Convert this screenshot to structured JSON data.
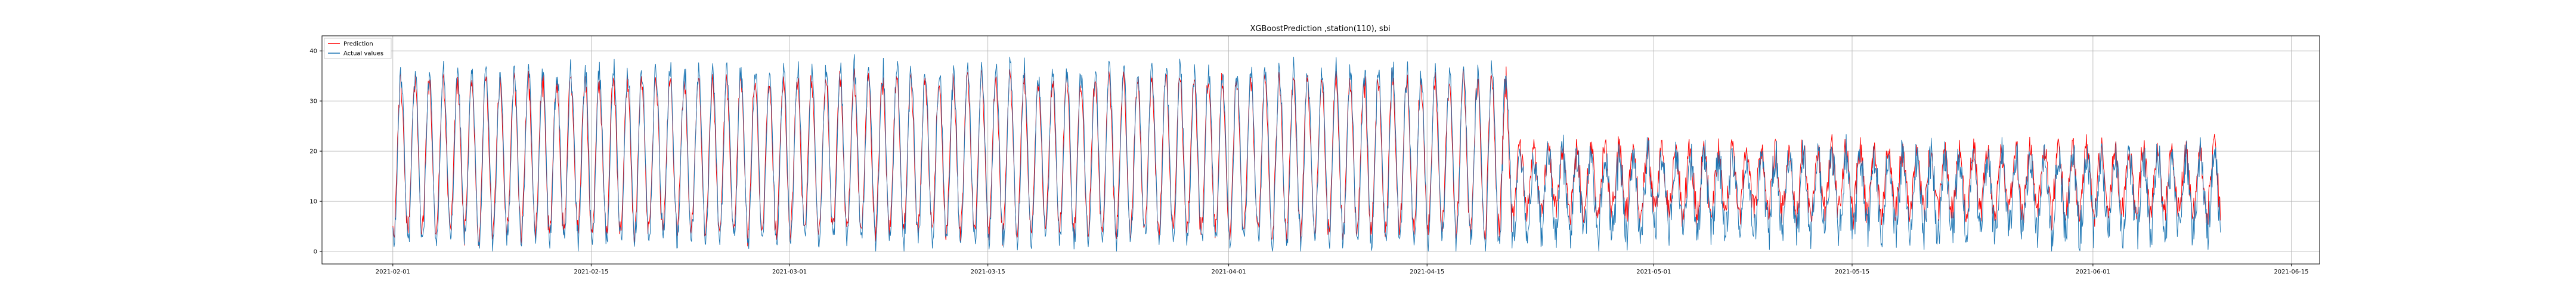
{
  "chart_data": {
    "type": "line",
    "title": "XGBoostPrediction ,station(110), sbi",
    "xlabel": "",
    "ylabel": "",
    "x_range": [
      "2021-01-27",
      "2021-06-17"
    ],
    "x_ticks": [
      "2021-02-01",
      "2021-02-15",
      "2021-03-01",
      "2021-03-15",
      "2021-04-01",
      "2021-04-15",
      "2021-05-01",
      "2021-05-15",
      "2021-06-01",
      "2021-06-15"
    ],
    "ylim": [
      -2.5,
      43
    ],
    "y_ticks": [
      0,
      10,
      20,
      30,
      40
    ],
    "grid": true,
    "legend_position": "top-left",
    "data_start": "2021-02-01",
    "data_end": "2021-06-10",
    "series": [
      {
        "name": "Prediction",
        "color": "#ff0000",
        "approx_daily_profile": [
          {
            "period": "2021-02-01 to 2021-04-20",
            "daily_min": 2,
            "daily_max": 36
          },
          {
            "period": "2021-04-20 to 2021-06-10",
            "daily_min": 7,
            "daily_max": 21
          }
        ]
      },
      {
        "name": "Actual values",
        "color": "#1f77b4",
        "approx_daily_profile": [
          {
            "period": "2021-02-01 to 2021-04-20",
            "daily_min": 0,
            "daily_max": 38
          },
          {
            "period": "2021-04-20 to 2021-06-10",
            "daily_min": 3,
            "daily_max": 20
          }
        ]
      }
    ]
  }
}
